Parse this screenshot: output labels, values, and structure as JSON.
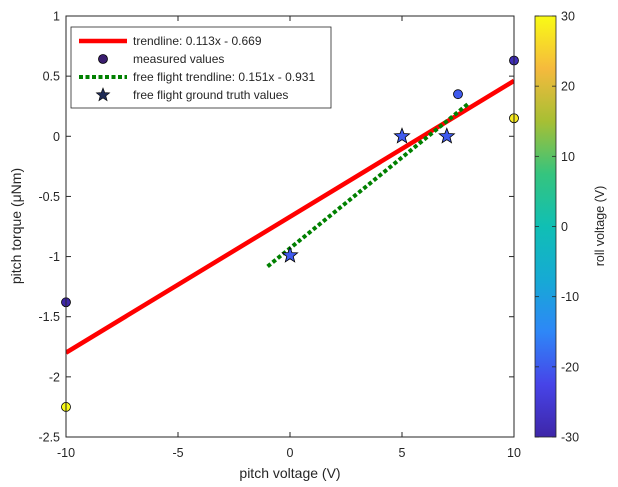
{
  "chart_data": {
    "type": "scatter",
    "xlabel": "pitch voltage (V)",
    "ylabel": "pitch torque (μNm)",
    "xlim": [
      -10,
      10
    ],
    "ylim": [
      -2.5,
      1
    ],
    "xticks": [
      -10,
      -5,
      0,
      5,
      10
    ],
    "xtick_labels": [
      "-10",
      "-5",
      "0",
      "5",
      "10"
    ],
    "yticks": [
      -2.5,
      -2,
      -1.5,
      -1,
      -0.5,
      0,
      0.5,
      1
    ],
    "ytick_labels": [
      "-2.5",
      "-2",
      "-1.5",
      "-1",
      "-0.5",
      "0",
      "0.5",
      "1"
    ],
    "grid": false,
    "legend_position": "top-left",
    "series": [
      {
        "name": "trendline: 0.113x - 0.669",
        "kind": "line",
        "color": "#ff0000",
        "style": "solid",
        "x": [
          -10,
          10
        ],
        "y": [
          -1.799,
          0.461
        ]
      },
      {
        "name": "measured values",
        "kind": "scatter",
        "marker": "circle",
        "points": [
          {
            "x": -10,
            "y": -1.38,
            "c": -30
          },
          {
            "x": -10,
            "y": -2.25,
            "c": 30
          },
          {
            "x": 7.5,
            "y": 0.35,
            "c": -20
          },
          {
            "x": 10,
            "y": 0.63,
            "c": -28
          },
          {
            "x": 10,
            "y": 0.15,
            "c": 28
          }
        ]
      },
      {
        "name": "free flight trendline: 0.151x - 0.931",
        "kind": "line",
        "color": "#008000",
        "style": "dotted",
        "x": [
          -1,
          8
        ],
        "y": [
          -1.082,
          0.277
        ]
      },
      {
        "name": "free flight ground truth values",
        "kind": "scatter",
        "marker": "star",
        "points": [
          {
            "x": 0,
            "y": -0.99,
            "c": -20
          },
          {
            "x": 5,
            "y": 0.0,
            "c": -20
          },
          {
            "x": 7,
            "y": 0.0,
            "c": -20
          }
        ]
      }
    ],
    "colorbar": {
      "label": "roll voltage (V)",
      "lim": [
        -30,
        30
      ],
      "ticks": [
        -30,
        -20,
        -10,
        0,
        10,
        20,
        30
      ],
      "tick_labels": [
        "-30",
        "-20",
        "-10",
        "0",
        "10",
        "20",
        "30"
      ],
      "colormap": "parula"
    }
  }
}
